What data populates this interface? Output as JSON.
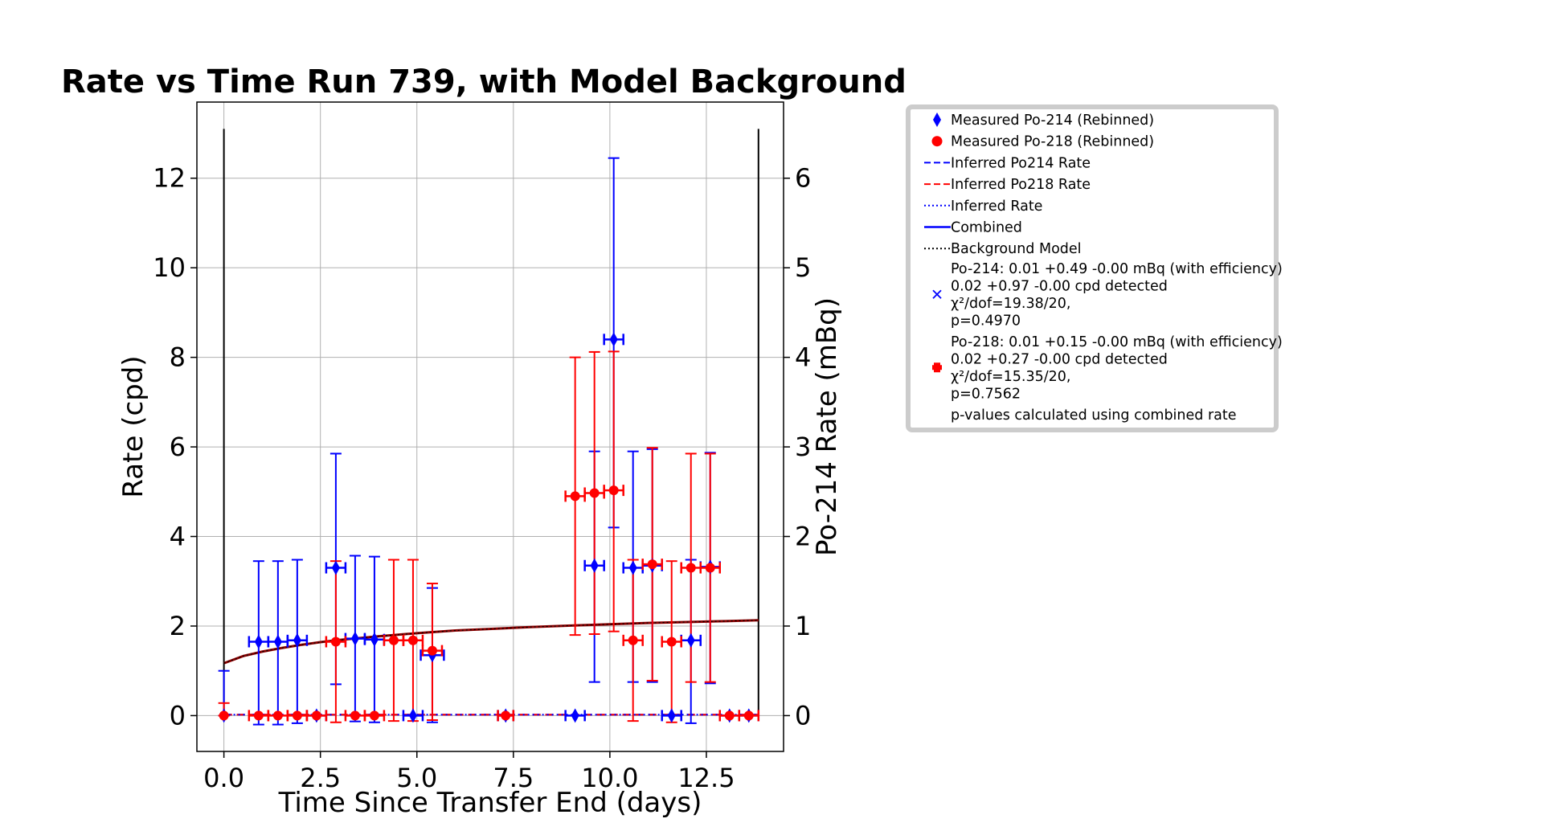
{
  "chart_data": {
    "type": "scatter",
    "title": "Rate vs Time Run 739, with Model Background",
    "xlabel": "Time Since Transfer End (days)",
    "ylabel": "Rate (cpd)",
    "y2label": "Po-214 Rate (mBq)",
    "xlim": [
      -0.7,
      14.5
    ],
    "ylim": [
      -0.8,
      13.7
    ],
    "y2lim": [
      -0.4,
      6.85
    ],
    "x_ticks": [
      "0.0",
      "2.5",
      "5.0",
      "7.5",
      "10.0",
      "12.5"
    ],
    "x_tick_values": [
      0,
      2.5,
      5,
      7.5,
      10,
      12.5
    ],
    "y_ticks": [
      "0",
      "2",
      "4",
      "6",
      "8",
      "10",
      "12"
    ],
    "y_tick_values": [
      0,
      2,
      4,
      6,
      8,
      10,
      12
    ],
    "y2_ticks": [
      "0",
      "1",
      "2",
      "3",
      "4",
      "5",
      "6"
    ],
    "y2_tick_values": [
      0,
      1,
      2,
      3,
      4,
      5,
      6
    ],
    "grid": true,
    "legend_position": "outside-right",
    "vertical_lines": [
      0,
      13.85
    ],
    "colors": {
      "po214": "#0000ff",
      "po218": "#ff0000",
      "model": "#8b0000",
      "black": "#000000"
    },
    "series": [
      {
        "name": "Measured Po-214 (Rebinned)",
        "color": "#0000ff",
        "marker": "diamond",
        "points": [
          {
            "x": 0.0,
            "y": 0.0,
            "yerr_low": 0.0,
            "yerr_high": 1.0,
            "xerr": 0.0
          },
          {
            "x": 0.9,
            "y": 1.65,
            "yerr_low": 1.85,
            "yerr_high": 1.8,
            "xerr": 0.25
          },
          {
            "x": 1.4,
            "y": 1.65,
            "yerr_low": 1.85,
            "yerr_high": 1.8,
            "xerr": 0.25
          },
          {
            "x": 1.9,
            "y": 1.68,
            "yerr_low": 1.85,
            "yerr_high": 1.8,
            "xerr": 0.25
          },
          {
            "x": 2.4,
            "y": 0.0,
            "yerr_low": 0.0,
            "yerr_high": 0.0,
            "xerr": 0.25
          },
          {
            "x": 2.9,
            "y": 3.3,
            "yerr_low": 2.6,
            "yerr_high": 2.55,
            "xerr": 0.25
          },
          {
            "x": 3.4,
            "y": 1.72,
            "yerr_low": 1.85,
            "yerr_high": 1.85,
            "xerr": 0.25
          },
          {
            "x": 3.9,
            "y": 1.7,
            "yerr_low": 1.85,
            "yerr_high": 1.85,
            "xerr": 0.25
          },
          {
            "x": 4.9,
            "y": 0.0,
            "yerr_low": 0.0,
            "yerr_high": 0.0,
            "xerr": 0.25
          },
          {
            "x": 5.4,
            "y": 1.35,
            "yerr_low": 1.5,
            "yerr_high": 1.5,
            "xerr": 0.3
          },
          {
            "x": 7.3,
            "y": 0.0,
            "yerr_low": 0.0,
            "yerr_high": 0.0,
            "xerr": 0.2
          },
          {
            "x": 9.1,
            "y": 0.0,
            "yerr_low": 0.0,
            "yerr_high": 0.0,
            "xerr": 0.25
          },
          {
            "x": 9.6,
            "y": 3.35,
            "yerr_low": 2.6,
            "yerr_high": 2.55,
            "xerr": 0.25
          },
          {
            "x": 10.1,
            "y": 8.4,
            "yerr_low": 4.2,
            "yerr_high": 4.05,
            "xerr": 0.25
          },
          {
            "x": 10.6,
            "y": 3.3,
            "yerr_low": 2.55,
            "yerr_high": 2.6,
            "xerr": 0.25
          },
          {
            "x": 11.1,
            "y": 3.35,
            "yerr_low": 2.6,
            "yerr_high": 2.6,
            "xerr": 0.25
          },
          {
            "x": 11.6,
            "y": 0.0,
            "yerr_low": 0.0,
            "yerr_high": 0.0,
            "xerr": 0.25
          },
          {
            "x": 12.1,
            "y": 1.68,
            "yerr_low": 1.85,
            "yerr_high": 1.8,
            "xerr": 0.25
          },
          {
            "x": 12.6,
            "y": 3.32,
            "yerr_low": 2.6,
            "yerr_high": 2.55,
            "xerr": 0.25
          },
          {
            "x": 13.1,
            "y": 0.0,
            "yerr_low": 0.0,
            "yerr_high": 0.0,
            "xerr": 0.25
          },
          {
            "x": 13.6,
            "y": 0.0,
            "yerr_low": 0.0,
            "yerr_high": 0.0,
            "xerr": 0.25
          }
        ]
      },
      {
        "name": "Measured Po-218 (Rebinned)",
        "color": "#ff0000",
        "marker": "circle",
        "points": [
          {
            "x": 0.0,
            "y": 0.0,
            "yerr_low": 0.0,
            "yerr_high": 0.28,
            "xerr": 0.0
          },
          {
            "x": 0.9,
            "y": 0.0,
            "yerr_low": 0.0,
            "yerr_high": 0.0,
            "xerr": 0.25
          },
          {
            "x": 1.4,
            "y": 0.0,
            "yerr_low": 0.0,
            "yerr_high": 0.0,
            "xerr": 0.25
          },
          {
            "x": 1.9,
            "y": 0.0,
            "yerr_low": 0.0,
            "yerr_high": 0.0,
            "xerr": 0.25
          },
          {
            "x": 2.4,
            "y": 0.0,
            "yerr_low": 0.0,
            "yerr_high": 0.0,
            "xerr": 0.25
          },
          {
            "x": 2.9,
            "y": 1.65,
            "yerr_low": 1.8,
            "yerr_high": 1.8,
            "xerr": 0.25
          },
          {
            "x": 3.4,
            "y": 0.0,
            "yerr_low": 0.0,
            "yerr_high": 0.0,
            "xerr": 0.25
          },
          {
            "x": 3.9,
            "y": 0.0,
            "yerr_low": 0.0,
            "yerr_high": 0.0,
            "xerr": 0.25
          },
          {
            "x": 4.4,
            "y": 1.68,
            "yerr_low": 1.8,
            "yerr_high": 1.8,
            "xerr": 0.25
          },
          {
            "x": 4.9,
            "y": 1.68,
            "yerr_low": 1.8,
            "yerr_high": 1.8,
            "xerr": 0.25
          },
          {
            "x": 5.4,
            "y": 1.45,
            "yerr_low": 1.55,
            "yerr_high": 1.5,
            "xerr": 0.25
          },
          {
            "x": 7.3,
            "y": 0.0,
            "yerr_low": 0.0,
            "yerr_high": 0.0,
            "xerr": 0.2
          },
          {
            "x": 9.1,
            "y": 4.9,
            "yerr_low": 3.1,
            "yerr_high": 3.1,
            "xerr": 0.25
          },
          {
            "x": 9.6,
            "y": 4.97,
            "yerr_low": 3.15,
            "yerr_high": 3.15,
            "xerr": 0.25
          },
          {
            "x": 10.1,
            "y": 5.03,
            "yerr_low": 3.15,
            "yerr_high": 3.1,
            "xerr": 0.25
          },
          {
            "x": 10.6,
            "y": 1.68,
            "yerr_low": 1.8,
            "yerr_high": 1.8,
            "xerr": 0.25
          },
          {
            "x": 11.1,
            "y": 3.38,
            "yerr_low": 2.6,
            "yerr_high": 2.6,
            "xerr": 0.25
          },
          {
            "x": 11.6,
            "y": 1.65,
            "yerr_low": 1.8,
            "yerr_high": 1.8,
            "xerr": 0.25
          },
          {
            "x": 12.1,
            "y": 3.3,
            "yerr_low": 2.55,
            "yerr_high": 2.55,
            "xerr": 0.25
          },
          {
            "x": 12.6,
            "y": 3.3,
            "yerr_low": 2.55,
            "yerr_high": 2.55,
            "xerr": 0.25
          },
          {
            "x": 13.1,
            "y": 0.0,
            "yerr_low": 0.0,
            "yerr_high": 0.0,
            "xerr": 0.25
          },
          {
            "x": 13.6,
            "y": 0.0,
            "yerr_low": 0.0,
            "yerr_high": 0.0,
            "xerr": 0.25
          }
        ]
      }
    ],
    "lines": [
      {
        "name": "Inferred Po214 Rate",
        "color": "#0000ff",
        "style": "dashed",
        "x": [
          0,
          13.85
        ],
        "y": [
          0.02,
          0.02
        ]
      },
      {
        "name": "Inferred Po218 Rate",
        "color": "#ff0000",
        "style": "dashed",
        "x": [
          0,
          13.85
        ],
        "y": [
          0.02,
          0.02
        ]
      },
      {
        "name": "Inferred Rate",
        "color": "#0000ff",
        "style": "dotted",
        "x": [
          0,
          13.85
        ],
        "y": [
          0.02,
          0.02
        ]
      },
      {
        "name": "Background Model",
        "color": "#8b0000",
        "style": "solid",
        "x": [
          0,
          0.5,
          1,
          1.5,
          2,
          2.5,
          3,
          4,
          5,
          6,
          7,
          8,
          9,
          10,
          11,
          12,
          13,
          13.85
        ],
        "y": [
          1.17,
          1.33,
          1.43,
          1.51,
          1.58,
          1.64,
          1.69,
          1.77,
          1.84,
          1.9,
          1.94,
          1.98,
          2.01,
          2.04,
          2.07,
          2.09,
          2.11,
          2.13
        ]
      }
    ]
  },
  "legend": {
    "items": [
      {
        "label": "Measured Po-214 (Rebinned)",
        "symbol": "diamond",
        "color": "#0000ff"
      },
      {
        "label": "Measured Po-218 (Rebinned)",
        "symbol": "circle",
        "color": "#ff0000"
      },
      {
        "label": "Inferred Po214 Rate",
        "symbol": "dashed",
        "color": "#0000ff"
      },
      {
        "label": "Inferred Po218 Rate",
        "symbol": "dashed",
        "color": "#ff0000"
      },
      {
        "label": "Inferred Rate",
        "symbol": "dotted",
        "color": "#0000ff"
      },
      {
        "label": "Combined",
        "symbol": "solid",
        "color": "#0000ff"
      },
      {
        "label": "Background Model",
        "symbol": "dotted",
        "color": "#000000"
      }
    ],
    "po214_block": [
      "Po-214: 0.01 +0.49 -0.00 mBq (with efficiency)",
      " 0.02 +0.97 -0.00 cpd detected",
      "χ²/dof=19.38/20,",
      "p=0.4970"
    ],
    "po218_block": [
      "Po-218: 0.01 +0.15 -0.00 mBq (with efficiency)",
      " 0.02 +0.27 -0.00 cpd detected",
      "χ²/dof=15.35/20,",
      "p=0.7562"
    ],
    "footer": "p-values calculated using combined rate"
  }
}
